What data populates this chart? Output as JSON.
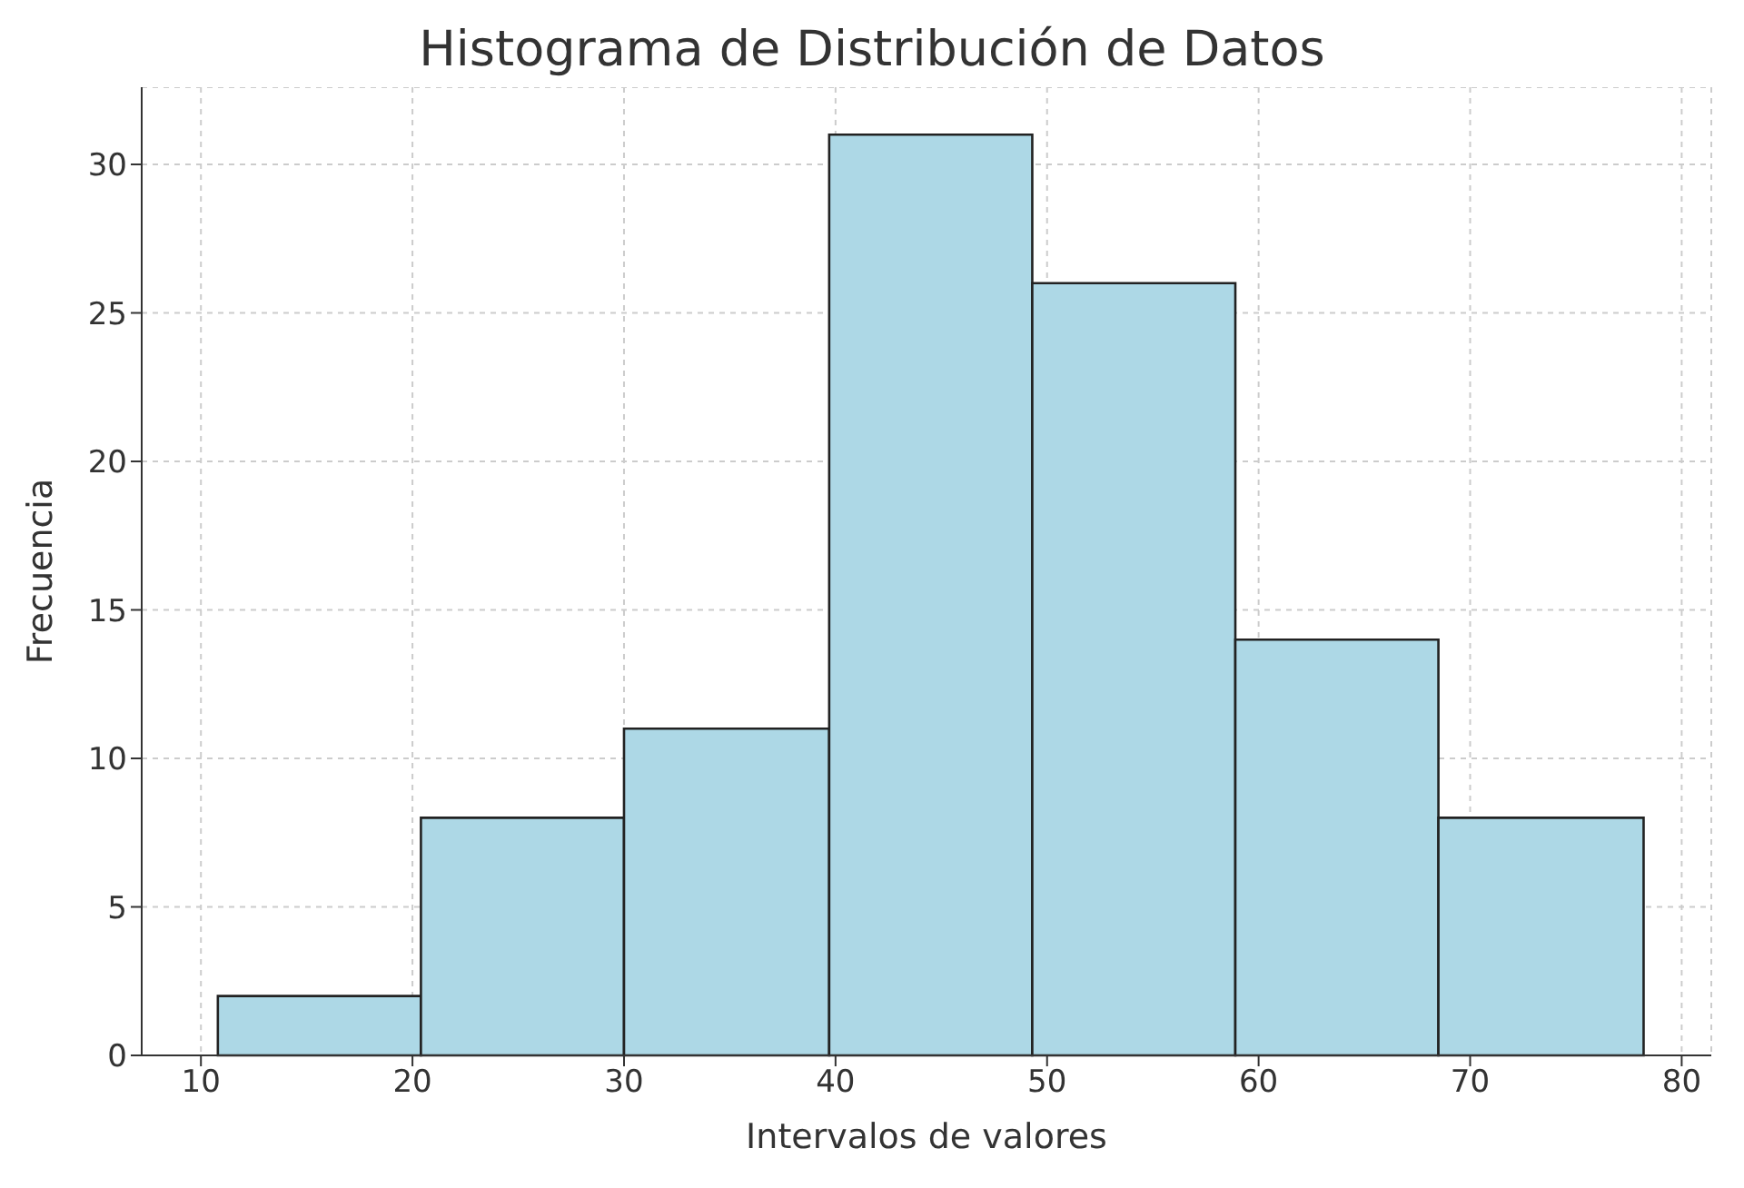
{
  "chart_data": {
    "type": "histogram",
    "title": "Histograma de Distribución de Datos",
    "xlabel": "Intervalos de valores",
    "ylabel": "Frecuencia",
    "bins": [
      10.8,
      20.4,
      30.0,
      39.7,
      49.3,
      58.9,
      68.5,
      78.2
    ],
    "values": [
      2,
      8,
      11,
      31,
      26,
      14,
      8
    ],
    "color": "#add8e6",
    "xlim": [
      7.2,
      81.4
    ],
    "xticks": [
      10,
      20,
      30,
      40,
      50,
      60,
      70,
      80
    ],
    "ylim": [
      0,
      32.6
    ],
    "yticks": [
      0,
      5,
      10,
      15,
      20,
      25,
      30
    ],
    "grid": true
  }
}
